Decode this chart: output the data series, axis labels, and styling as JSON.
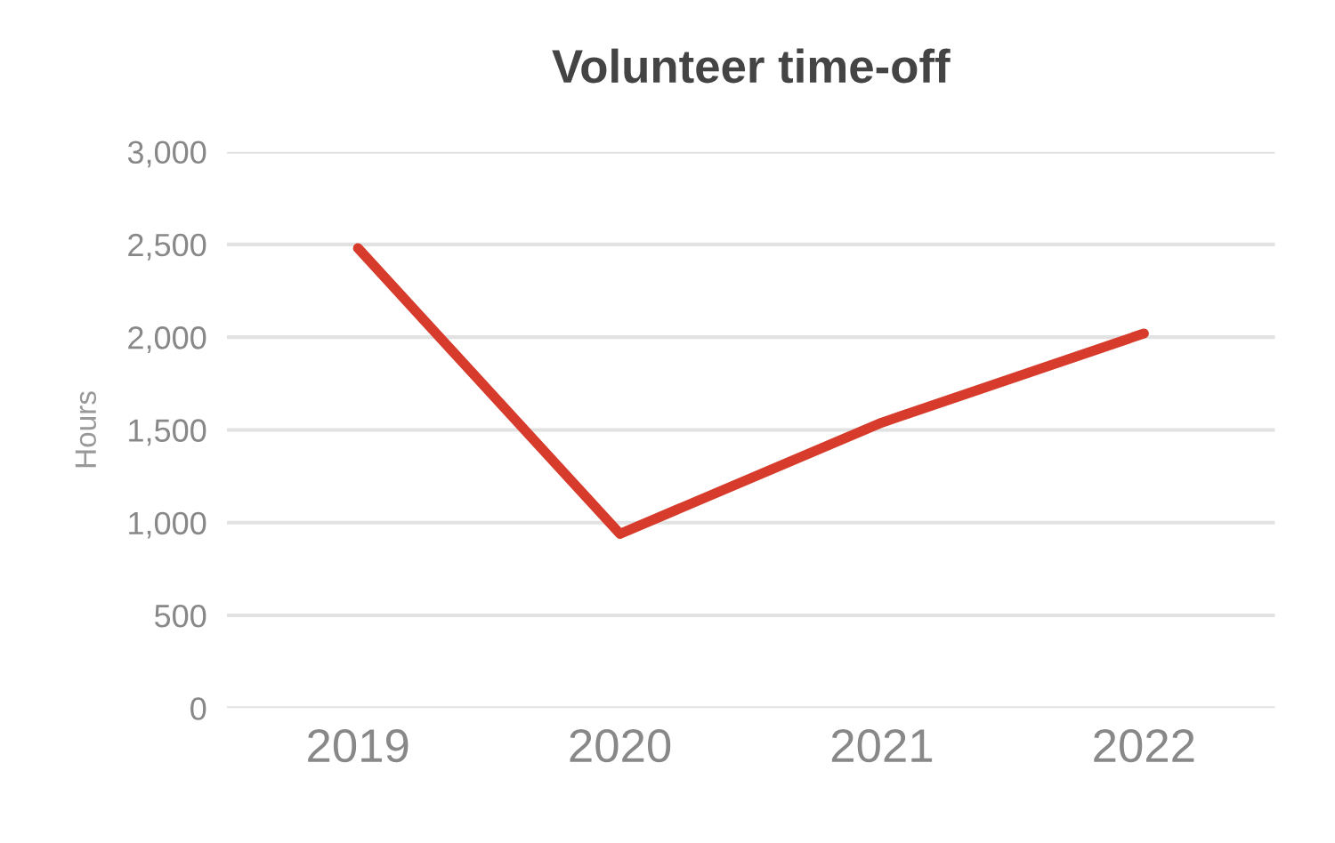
{
  "chart_data": {
    "type": "line",
    "title": "Volunteer time-off",
    "ylabel": "Hours",
    "categories": [
      "2019",
      "2020",
      "2021",
      "2022"
    ],
    "series": [
      {
        "color": "#d63b2b",
        "values": [
          2480,
          940,
          1540,
          2020
        ]
      }
    ],
    "ylim": [
      0,
      3000
    ],
    "yticks": [
      {
        "value": 0,
        "label": "0"
      },
      {
        "value": 500,
        "label": "500"
      },
      {
        "value": 1000,
        "label": "1,000"
      },
      {
        "value": 1500,
        "label": "1,500"
      },
      {
        "value": 2000,
        "label": "2,000"
      },
      {
        "value": 2500,
        "label": "2,500"
      },
      {
        "value": 3000,
        "label": "3,000"
      }
    ],
    "grid": "y",
    "marker": "none",
    "line_style": "solid"
  }
}
